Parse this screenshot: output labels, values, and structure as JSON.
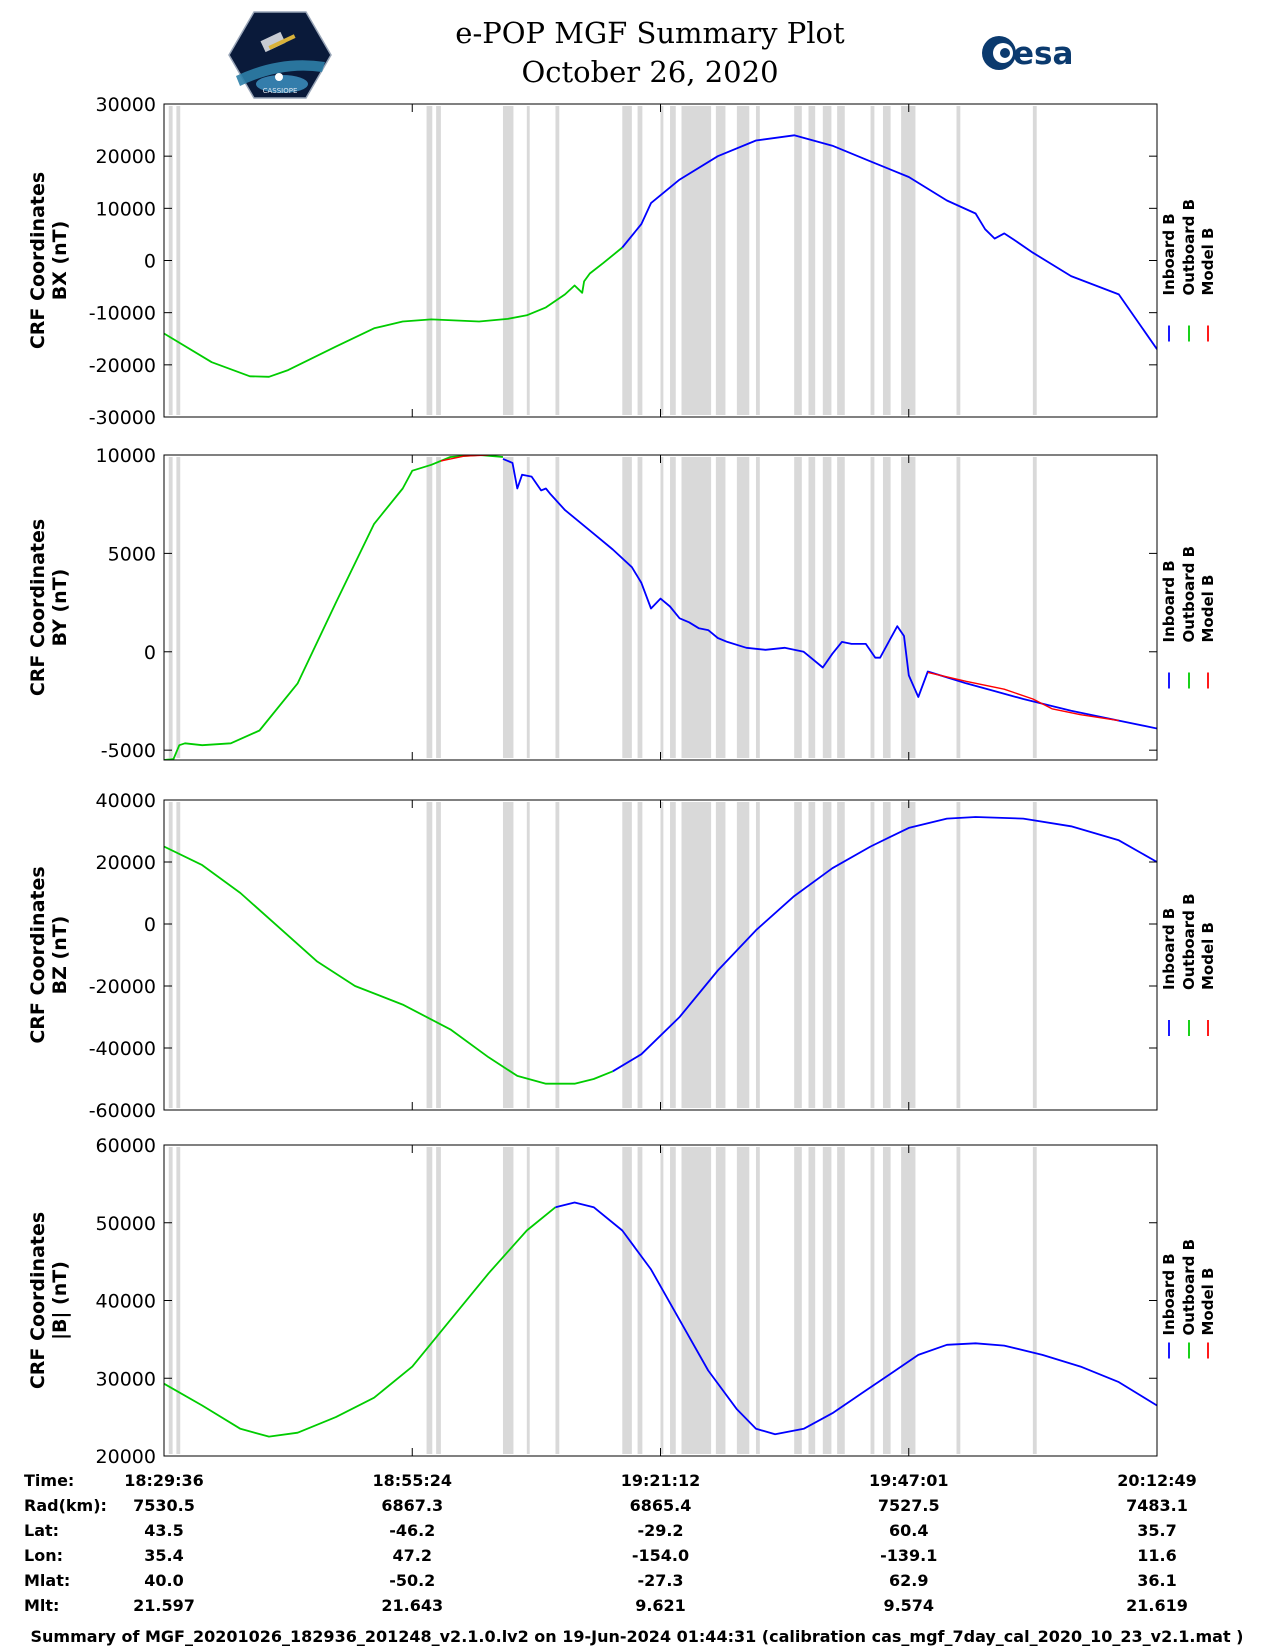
{
  "header": {
    "title_line1": "e-POP MGF Summary Plot",
    "title_line2": "October 26, 2020",
    "logo_left_text": "CASSIOPE",
    "logo_right_text": "esa"
  },
  "colors": {
    "inboard": "#0000ff",
    "outboard": "#00cc00",
    "model": "#ff0000",
    "gap_shade": "#d9d9d9"
  },
  "legend": [
    "Inboard B",
    "Outboard B",
    "Model B"
  ],
  "chart_data": [
    {
      "type": "line",
      "panel": "BX",
      "ylabel": [
        "CRF Coordinates",
        "BX (nT)"
      ],
      "ylim": [
        -30000,
        30000
      ],
      "yticks": [
        -30000,
        -20000,
        -10000,
        0,
        10000,
        20000,
        30000
      ],
      "xlim": [
        0,
        104
      ],
      "series": [
        {
          "name": "Outboard B",
          "color": "outboard",
          "x": [
            0,
            5,
            9,
            11,
            13,
            18,
            22,
            25,
            28,
            33,
            36,
            38,
            40,
            42,
            43,
            43.8,
            44,
            44.6,
            46,
            48
          ],
          "y": [
            -14000,
            -19500,
            -22200,
            -22300,
            -21000,
            -16500,
            -13000,
            -11700,
            -11300,
            -11700,
            -11200,
            -10500,
            -9000,
            -6500,
            -4800,
            -6200,
            -4000,
            -2500,
            -500,
            2500
          ]
        },
        {
          "name": "Inboard B",
          "color": "inboard",
          "x": [
            48,
            50,
            51,
            54,
            58,
            62,
            66,
            70,
            74,
            78,
            82,
            85,
            86,
            87,
            88,
            89,
            91,
            95,
            100,
            104
          ],
          "y": [
            2500,
            7000,
            11000,
            15500,
            20000,
            23000,
            24000,
            22000,
            19000,
            16000,
            11500,
            9000,
            6000,
            4200,
            5200,
            4000,
            1500,
            -3000,
            -6500,
            -17000
          ]
        }
      ]
    },
    {
      "type": "line",
      "panel": "BY",
      "ylabel": [
        "CRF Coordinates",
        "BY (nT)"
      ],
      "ylim": [
        -5500,
        10000
      ],
      "yticks": [
        -5000,
        0,
        5000,
        10000
      ],
      "xlim": [
        0,
        104
      ],
      "series": [
        {
          "name": "Outboard B",
          "color": "outboard",
          "x": [
            0,
            1,
            1.6,
            2.2,
            4,
            7,
            10,
            14,
            18,
            22,
            25,
            26,
            28,
            30,
            33,
            35.5
          ],
          "y": [
            -5500,
            -5450,
            -4750,
            -4650,
            -4750,
            -4650,
            -4000,
            -1600,
            2500,
            6500,
            8300,
            9200,
            9500,
            9900,
            10000,
            9900
          ]
        },
        {
          "name": "Inboard B",
          "color": "inboard",
          "x": [
            35.5,
            36.5,
            37,
            37.5,
            38.5,
            39.5,
            40,
            40.5,
            42,
            45,
            47,
            49,
            50,
            51,
            52,
            53,
            54,
            55,
            56,
            57,
            58,
            59,
            61,
            63,
            65,
            67,
            69,
            70,
            71,
            72,
            73.5,
            74.5,
            75,
            76,
            76.8,
            77.5,
            78,
            79,
            80,
            82,
            84,
            87,
            90,
            95,
            100,
            104
          ],
          "y": [
            9800,
            9600,
            8300,
            9000,
            8900,
            8200,
            8300,
            8000,
            7200,
            6000,
            5200,
            4300,
            3500,
            2200,
            2700,
            2300,
            1700,
            1500,
            1200,
            1100,
            700,
            500,
            200,
            100,
            200,
            0,
            -800,
            -100,
            500,
            400,
            400,
            -300,
            -300,
            600,
            1300,
            800,
            -1200,
            -2300,
            -1000,
            -1300,
            -1600,
            -2000,
            -2400,
            -3000,
            -3500,
            -3900
          ]
        },
        {
          "name": "Model B",
          "color": "model",
          "x": [
            29,
            31.5,
            34
          ],
          "y": [
            9700,
            9950,
            10000
          ],
          "width": 1.4
        },
        {
          "name": "Model B",
          "color": "model",
          "x": [
            80,
            84,
            88,
            91,
            93,
            96,
            100
          ],
          "y": [
            -1050,
            -1500,
            -1900,
            -2400,
            -2900,
            -3200,
            -3500
          ],
          "width": 1.4
        }
      ]
    },
    {
      "type": "line",
      "panel": "BZ",
      "ylabel": [
        "CRF Coordinates",
        "BZ (nT)"
      ],
      "ylim": [
        -60000,
        40000
      ],
      "yticks": [
        -60000,
        -40000,
        -20000,
        0,
        20000,
        40000
      ],
      "xlim": [
        0,
        104
      ],
      "series": [
        {
          "name": "Outboard B",
          "color": "outboard",
          "x": [
            0,
            4,
            8,
            12,
            16,
            20,
            25,
            30,
            34,
            37,
            40,
            43,
            45,
            47
          ],
          "y": [
            25000,
            19000,
            10000,
            -1000,
            -12000,
            -20000,
            -26000,
            -34000,
            -43000,
            -49000,
            -51500,
            -51500,
            -50000,
            -47500
          ]
        },
        {
          "name": "Inboard B",
          "color": "inboard",
          "x": [
            47,
            50,
            54,
            58,
            62,
            66,
            70,
            74,
            78,
            82,
            85,
            90,
            95,
            100,
            104
          ],
          "y": [
            -47500,
            -42000,
            -30000,
            -15000,
            -2000,
            9000,
            18000,
            25000,
            31000,
            34000,
            34500,
            34000,
            31500,
            27000,
            20000
          ]
        }
      ]
    },
    {
      "type": "line",
      "panel": "B",
      "ylabel": [
        "CRF Coordinates",
        "|B| (nT)"
      ],
      "ylim": [
        20000,
        60000
      ],
      "yticks": [
        20000,
        30000,
        40000,
        50000,
        60000
      ],
      "xlim": [
        0,
        104
      ],
      "series": [
        {
          "name": "Outboard B",
          "color": "outboard",
          "x": [
            0,
            4,
            8,
            11,
            14,
            18,
            22,
            26,
            30,
            34,
            38,
            41
          ],
          "y": [
            29300,
            26500,
            23500,
            22500,
            23000,
            25000,
            27500,
            31500,
            37500,
            43500,
            49000,
            52000
          ]
        },
        {
          "name": "Inboard B",
          "color": "inboard",
          "x": [
            41,
            43,
            45,
            48,
            51,
            54,
            57,
            60,
            62,
            64,
            67,
            70,
            73,
            76,
            79,
            82,
            85,
            88,
            92,
            96,
            100,
            104
          ],
          "y": [
            52000,
            52600,
            52000,
            49000,
            44000,
            37500,
            31000,
            26000,
            23500,
            22800,
            23500,
            25500,
            28000,
            30500,
            33000,
            34300,
            34500,
            34200,
            33000,
            31500,
            29500,
            26500
          ]
        }
      ]
    }
  ],
  "gaps": [
    [
      0.5,
      0.9
    ],
    [
      1.3,
      1.7
    ],
    [
      27.5,
      28.1
    ],
    [
      28.5,
      29.0
    ],
    [
      35.5,
      36.6
    ],
    [
      38.0,
      38.3
    ],
    [
      41.0,
      41.4
    ],
    [
      48.0,
      49.0
    ],
    [
      49.6,
      50.1
    ],
    [
      52.0,
      52.3
    ],
    [
      53.0,
      53.6
    ],
    [
      54.2,
      57.3
    ],
    [
      57.8,
      58.8
    ],
    [
      60.0,
      61.3
    ],
    [
      62.0,
      62.4
    ],
    [
      66.0,
      66.8
    ],
    [
      67.5,
      68.2
    ],
    [
      69.0,
      69.9
    ],
    [
      70.5,
      71.3
    ],
    [
      74.0,
      74.4
    ],
    [
      75.3,
      76.1
    ],
    [
      77.2,
      78.7
    ],
    [
      83.0,
      83.4
    ],
    [
      91.0,
      91.4
    ]
  ],
  "time_table": {
    "rows": [
      {
        "label": "Time:",
        "values": [
          "18:29:36",
          "18:55:24",
          "19:21:12",
          "19:47:01",
          "20:12:49"
        ]
      },
      {
        "label": "Rad(km):",
        "values": [
          "7530.5",
          "6867.3",
          "6865.4",
          "7527.5",
          "7483.1"
        ]
      },
      {
        "label": "Lat:",
        "values": [
          "43.5",
          "-46.2",
          "-29.2",
          "60.4",
          "35.7"
        ]
      },
      {
        "label": "Lon:",
        "values": [
          "35.4",
          "47.2",
          "-154.0",
          "-139.1",
          "11.6"
        ]
      },
      {
        "label": "Mlat:",
        "values": [
          "40.0",
          "-50.2",
          "-27.3",
          "62.9",
          "36.1"
        ]
      },
      {
        "label": "Mlt:",
        "values": [
          "21.597",
          "21.643",
          "9.621",
          "9.574",
          "21.619"
        ]
      }
    ]
  },
  "footer": "Summary of MGF_20201026_182936_201248_v2.1.0.lv2 on 19-Jun-2024 01:44:31 (calibration cas_mgf_7day_cal_2020_10_23_v2.1.mat )"
}
